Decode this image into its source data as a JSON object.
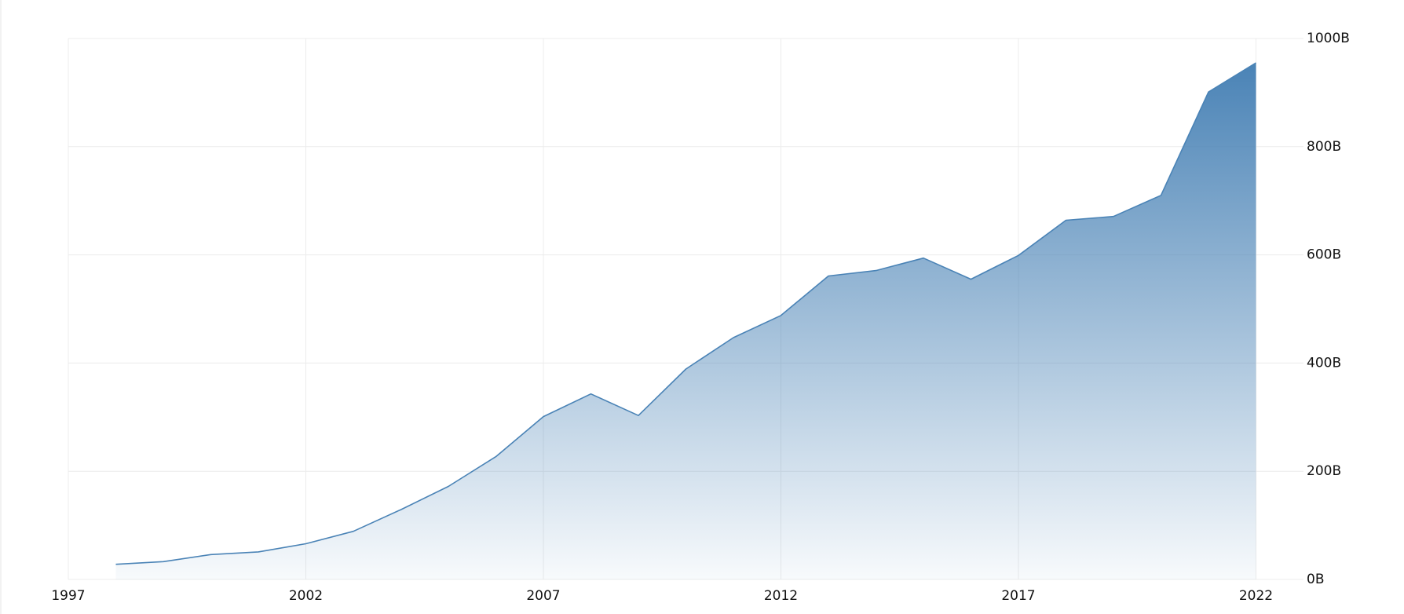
{
  "chart_data": {
    "type": "area",
    "x": [
      1998,
      1999,
      2000,
      2001,
      2002,
      2003,
      2004,
      2005,
      2006,
      2007,
      2008,
      2009,
      2010,
      2011,
      2012,
      2013,
      2014,
      2015,
      2016,
      2017,
      2018,
      2019,
      2020,
      2021,
      2022
    ],
    "values": [
      28,
      33,
      46,
      51,
      66,
      89,
      129,
      172,
      227,
      301,
      343,
      303,
      389,
      447,
      488,
      561,
      571,
      594,
      555,
      599,
      664,
      671,
      710,
      901,
      955
    ],
    "color": "#4a83b6",
    "xlim": [
      1997,
      2023
    ],
    "xticks": [
      1997,
      2002,
      2007,
      2012,
      2017,
      2022
    ],
    "ylim": [
      0,
      1000
    ],
    "yticks": [
      {
        "value": 0,
        "label": "0B"
      },
      {
        "value": 200,
        "label": "200B"
      },
      {
        "value": 400,
        "label": "400B"
      },
      {
        "value": 600,
        "label": "600B"
      },
      {
        "value": 800,
        "label": "800B"
      },
      {
        "value": 1000,
        "label": "1000B"
      }
    ],
    "grid": true
  }
}
